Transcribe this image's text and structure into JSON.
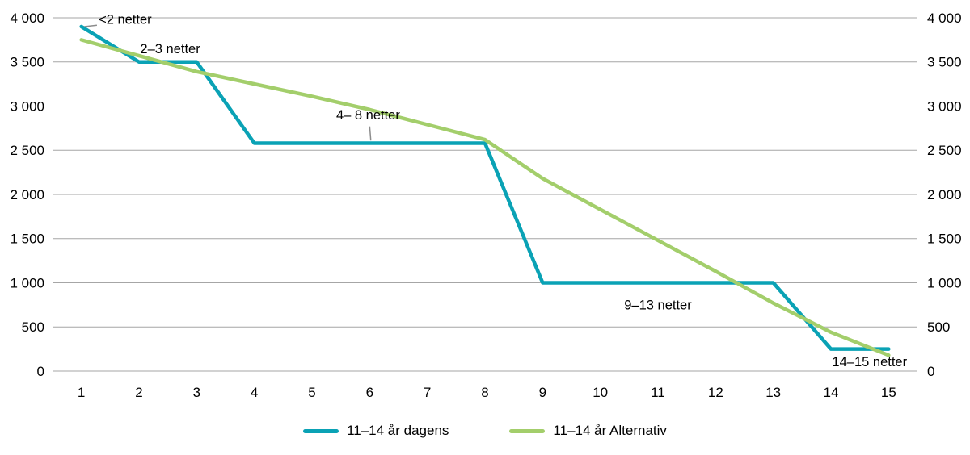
{
  "chart_data": {
    "type": "line",
    "x": [
      1,
      2,
      3,
      4,
      5,
      6,
      7,
      8,
      9,
      10,
      11,
      12,
      13,
      14,
      15
    ],
    "series": [
      {
        "name": "11–14 år dagens",
        "color": "#0aa2b5",
        "values": [
          3900,
          3500,
          3500,
          2580,
          2580,
          2580,
          2580,
          2580,
          1000,
          1000,
          1000,
          1000,
          1000,
          250,
          250
        ]
      },
      {
        "name": "11–14 år Alternativ",
        "color": "#a3ce6b",
        "values": [
          3750,
          3570,
          3390,
          3250,
          3110,
          2960,
          2790,
          2620,
          2180,
          1830,
          1480,
          1130,
          770,
          440,
          180
        ]
      }
    ],
    "title": "",
    "xlabel": "",
    "ylabel": "",
    "ylim": [
      0,
      4000
    ],
    "ytick_step": 500,
    "yticklabels": [
      "0",
      "500",
      "1 000",
      "1 500",
      "2 000",
      "2 500",
      "3 000",
      "3 500",
      "4 000"
    ],
    "y_axis_sides": [
      "left",
      "right"
    ],
    "grid": "horizontal",
    "gridline_color": "#a6a6a6",
    "legend_position": "bottom",
    "annotations": [
      {
        "text": "<2 netter",
        "x": 1.3,
        "y": 3930,
        "anchor": "start",
        "leader": [
          1.05,
          3900,
          1.27,
          3915
        ]
      },
      {
        "text": "2–3 netter",
        "x": 2.02,
        "y": 3600,
        "anchor": "start"
      },
      {
        "text": "4– 8 netter",
        "x": 5.42,
        "y": 2850,
        "anchor": "start",
        "leader": [
          6.0,
          2770,
          6.02,
          2610
        ]
      },
      {
        "text": "9–13 netter",
        "x": 11.0,
        "y": 700,
        "anchor": "middle"
      },
      {
        "text": "14–15 netter",
        "x": 14.02,
        "y": 55,
        "anchor": "start"
      }
    ]
  }
}
